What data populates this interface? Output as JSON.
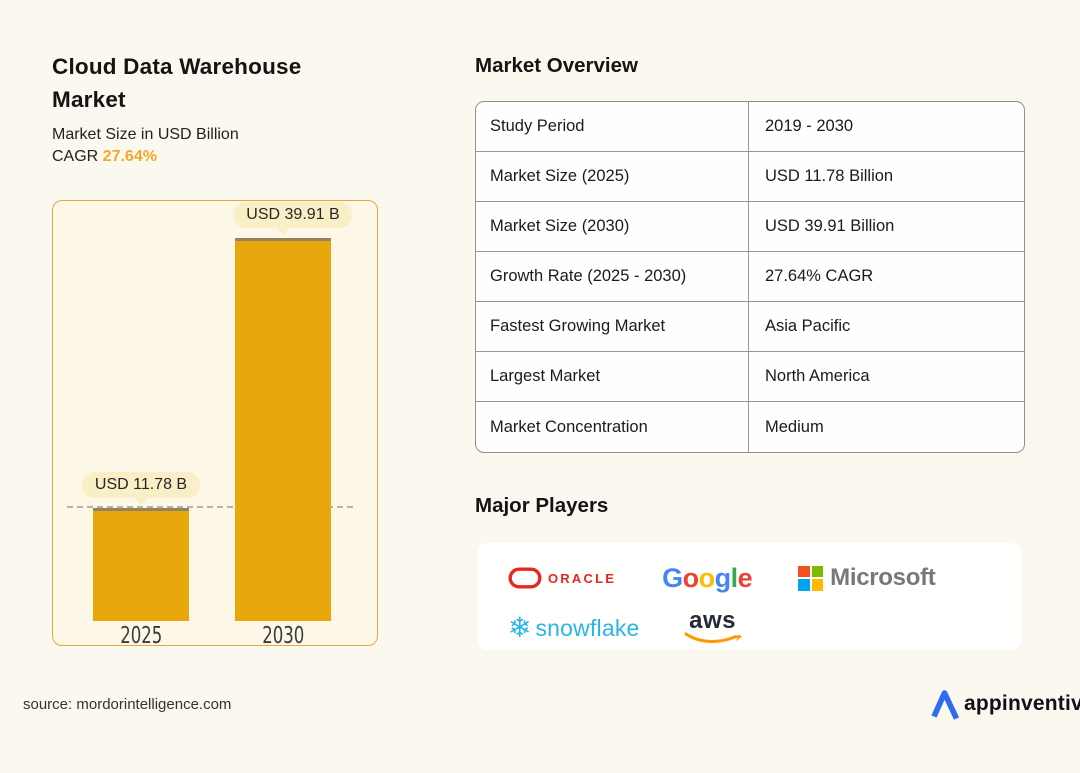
{
  "header": {
    "title_line1": "Cloud Data Warehouse",
    "title_line2": "Market",
    "subtitle": "Market Size in USD Billion",
    "cagr_label": "CAGR ",
    "cagr_value": "27.64%"
  },
  "chart_data": {
    "type": "bar",
    "title": "Cloud Data Warehouse Market",
    "subtitle": "Market Size in USD Billion",
    "unit": "USD Billion",
    "categories": [
      "2025",
      "2030"
    ],
    "values": [
      11.78,
      39.91
    ],
    "bar_labels": [
      "USD 11.78 B",
      "USD 39.91 B"
    ],
    "cagr": "27.64%",
    "ylim": [
      0,
      43.7
    ],
    "grid": "single dashed horizontal reference line at 2025 value",
    "legend": "none",
    "bar_color": "#E8A80D"
  },
  "overview": {
    "heading": "Market Overview",
    "rows": [
      {
        "label": "Study Period",
        "value": "2019 - 2030"
      },
      {
        "label": "Market Size (2025)",
        "value": "USD 11.78 Billion"
      },
      {
        "label": "Market Size (2030)",
        "value": "USD 39.91 Billion"
      },
      {
        "label": "Growth Rate (2025 - 2030)",
        "value": "27.64% CAGR"
      },
      {
        "label": "Fastest Growing Market",
        "value": "Asia Pacific"
      },
      {
        "label": "Largest Market",
        "value": "North America"
      },
      {
        "label": "Market Concentration",
        "value": "Medium"
      }
    ]
  },
  "players": {
    "heading": "Major Players",
    "oracle": {
      "name": "Oracle",
      "wordmark": "ORACLE",
      "color": "#E8271E"
    },
    "google": {
      "name": "Google",
      "letters": [
        "G",
        "o",
        "o",
        "g",
        "l",
        "e"
      ],
      "colors": [
        "#4285F4",
        "#EA4335",
        "#FBBC05",
        "#4285F4",
        "#34A853",
        "#EA4335"
      ]
    },
    "microsoft": {
      "name": "Microsoft",
      "wordmark": "Microsoft",
      "square_colors": [
        "#F25022",
        "#7FBA00",
        "#00A4EF",
        "#FFB900"
      ],
      "text_color": "#737373"
    },
    "snowflake": {
      "name": "Snowflake",
      "wordmark": "snowflake",
      "glyph": "❄",
      "color": "#29B5E8"
    },
    "aws": {
      "name": "AWS",
      "wordmark": "aws",
      "text_color": "#232A35",
      "swoosh_color": "#FF9900"
    }
  },
  "footer": {
    "source": "source: mordorintelligence.com",
    "brand": "appinventiv",
    "brand_color": "#2E6BF2"
  },
  "colors": {
    "page_bg": "#FBF8EF",
    "chart_bg": "#FDF7E7",
    "chart_border": "#E5A83B",
    "bar": "#E8A80D",
    "accent": "#F0A928",
    "pill_bg": "#F9EFC6",
    "table_border": "#8F8F8F"
  }
}
